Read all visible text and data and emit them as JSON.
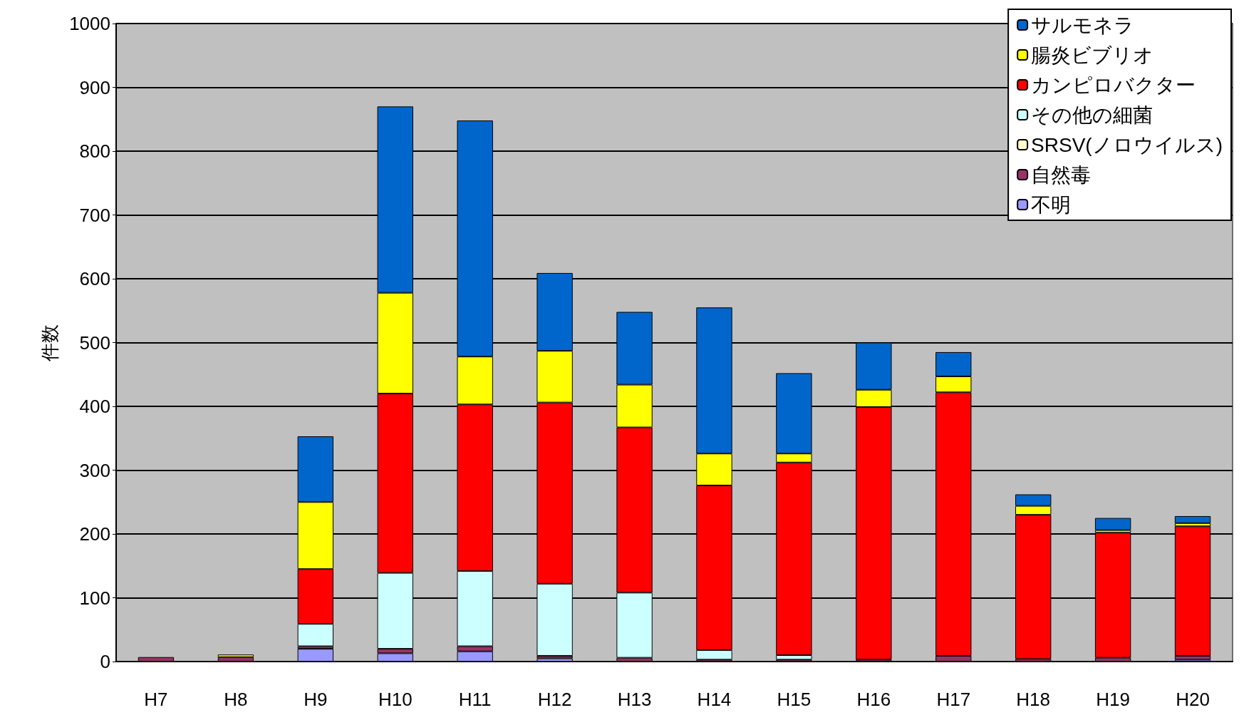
{
  "chart_data": {
    "type": "bar",
    "stacked": true,
    "ylabel": "件数",
    "categories": [
      "H7",
      "H8",
      "H9",
      "H10",
      "H11",
      "H12",
      "H13",
      "H14",
      "H15",
      "H16",
      "H17",
      "H18",
      "H19",
      "H20"
    ],
    "series": [
      {
        "name": "不明",
        "color": "#9999ff",
        "values": [
          null,
          null,
          20,
          13,
          16,
          5,
          null,
          null,
          null,
          null,
          null,
          null,
          null,
          3
        ]
      },
      {
        "name": "自然毒",
        "color": "#993366",
        "values": [
          7,
          7,
          4,
          7,
          8,
          4,
          6,
          3,
          3,
          3,
          9,
          4,
          6,
          6
        ]
      },
      {
        "name": "SRSV(ノロウイルス)",
        "color": "#ffffcc",
        "values": [
          null,
          null,
          null,
          null,
          null,
          null,
          null,
          null,
          null,
          null,
          null,
          null,
          null,
          null
        ]
      },
      {
        "name": "その他の細菌",
        "color": "#ccffff",
        "values": [
          null,
          null,
          35,
          119,
          118,
          113,
          102,
          15,
          7,
          null,
          null,
          null,
          null,
          null
        ]
      },
      {
        "name": "カンピロバクター",
        "color": "#ff0000",
        "values": [
          null,
          null,
          86,
          281,
          261,
          284,
          259,
          258,
          302,
          396,
          413,
          226,
          196,
          203
        ]
      },
      {
        "name": "腸炎ビブリオ",
        "color": "#ffff00",
        "values": [
          null,
          4,
          105,
          158,
          75,
          81,
          67,
          50,
          14,
          27,
          25,
          14,
          4,
          5
        ]
      },
      {
        "name": "サルモネラ",
        "color": "#0066cc",
        "values": [
          null,
          null,
          103,
          292,
          370,
          122,
          114,
          229,
          126,
          74,
          38,
          18,
          19,
          11
        ]
      }
    ],
    "ylim": [
      0,
      1000
    ],
    "yticks": [
      0,
      100,
      200,
      300,
      400,
      500,
      600,
      700,
      800,
      900,
      1000
    ],
    "grid": "y",
    "legend": "top right"
  }
}
